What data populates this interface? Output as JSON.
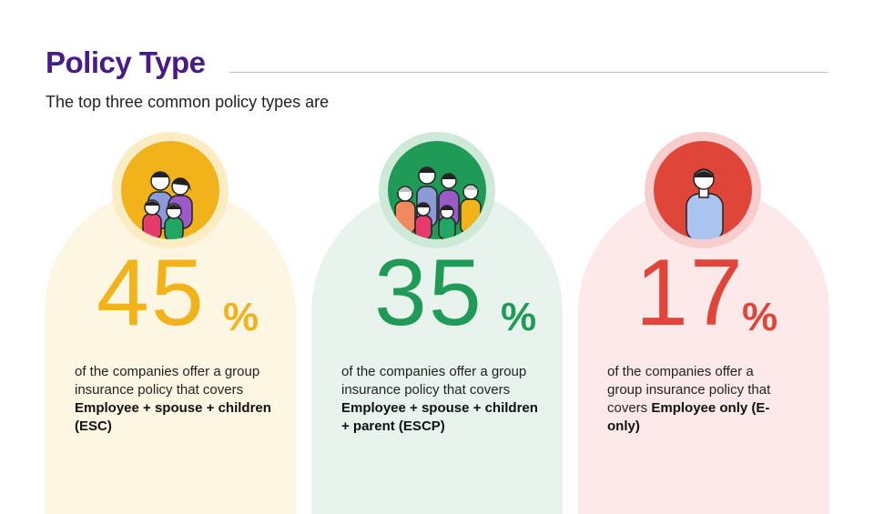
{
  "header": {
    "title": "Policy Type",
    "subtitle": "The top three common policy types are"
  },
  "cards": [
    {
      "value": "45",
      "unit": "%",
      "desc_plain": "of the companies offer a group insurance policy that covers ",
      "desc_bold": "Employee + spouse + children (ESC)",
      "accent": "#f2b21a",
      "icon": "family-esc-icon"
    },
    {
      "value": "35",
      "unit": "%",
      "desc_plain": "of the companies offer a group insurance policy that covers ",
      "desc_bold": "Employee + spouse + children + parent (ESCP)",
      "accent": "#1f9b57",
      "icon": "family-escp-icon"
    },
    {
      "value": "17",
      "unit": "%",
      "desc_plain": "of the companies offer a group insurance policy that covers ",
      "desc_bold": "Employee only (E-only)",
      "accent": "#e0453a",
      "icon": "employee-only-icon"
    }
  ]
}
